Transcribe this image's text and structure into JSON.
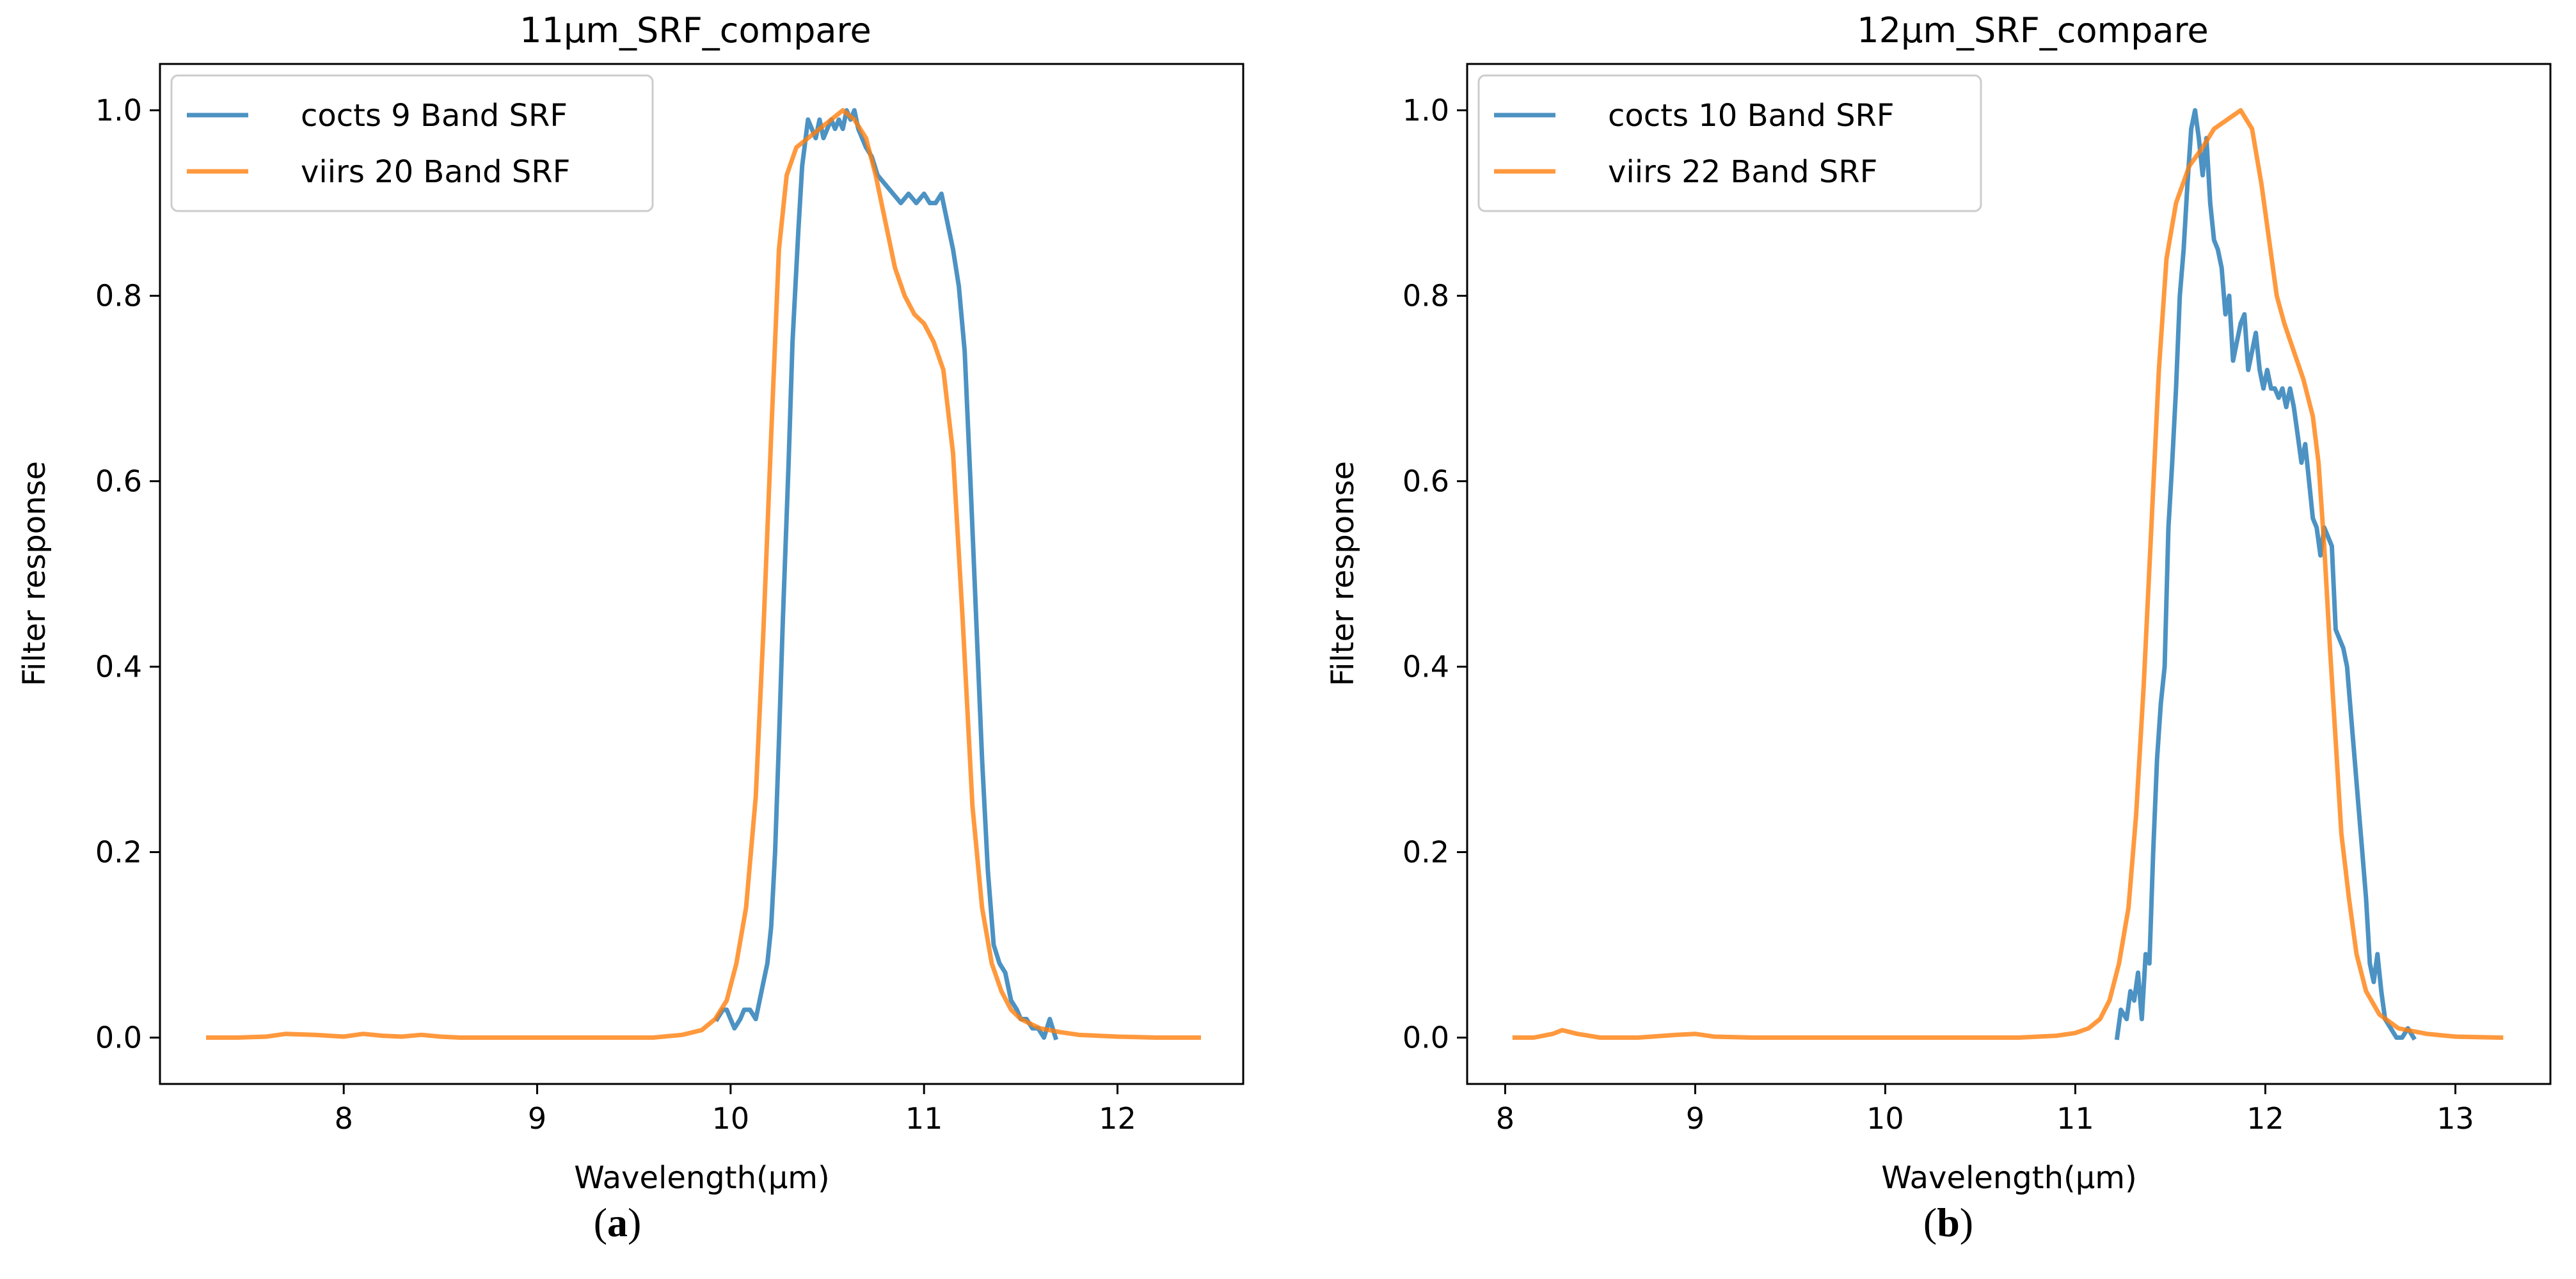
{
  "colors": {
    "cocts": "#1f77b4",
    "viirs": "#ff7f0e",
    "axis": "#000000",
    "legend_border": "#cccccc"
  },
  "captions": {
    "a": {
      "open": "(",
      "letter": "a",
      "close": ")"
    },
    "b": {
      "open": "(",
      "letter": "b",
      "close": ")"
    }
  },
  "chart_data": [
    {
      "type": "line",
      "title": "11μm_SRF_compare",
      "xlabel": "Wavelength(μm)",
      "ylabel": "Filter response",
      "xlim": [
        7.05,
        12.65
      ],
      "ylim": [
        -0.05,
        1.05
      ],
      "xticks": [
        8,
        9,
        10,
        11,
        12
      ],
      "yticks": [
        0.0,
        0.2,
        0.4,
        0.6,
        0.8,
        1.0
      ],
      "grid": false,
      "legend_position": "top-left",
      "series": [
        {
          "name": "cocts 9 Band SRF",
          "color_key": "cocts",
          "points": [
            [
              9.93,
              0.02
            ],
            [
              9.96,
              0.03
            ],
            [
              9.98,
              0.03
            ],
            [
              10.0,
              0.02
            ],
            [
              10.02,
              0.01
            ],
            [
              10.05,
              0.02
            ],
            [
              10.07,
              0.03
            ],
            [
              10.1,
              0.03
            ],
            [
              10.13,
              0.02
            ],
            [
              10.15,
              0.04
            ],
            [
              10.17,
              0.06
            ],
            [
              10.19,
              0.08
            ],
            [
              10.21,
              0.12
            ],
            [
              10.23,
              0.2
            ],
            [
              10.25,
              0.32
            ],
            [
              10.27,
              0.45
            ],
            [
              10.3,
              0.62
            ],
            [
              10.32,
              0.75
            ],
            [
              10.35,
              0.87
            ],
            [
              10.37,
              0.94
            ],
            [
              10.4,
              0.99
            ],
            [
              10.42,
              0.98
            ],
            [
              10.44,
              0.97
            ],
            [
              10.46,
              0.99
            ],
            [
              10.48,
              0.97
            ],
            [
              10.5,
              0.98
            ],
            [
              10.52,
              0.99
            ],
            [
              10.54,
              0.98
            ],
            [
              10.56,
              0.99
            ],
            [
              10.58,
              0.98
            ],
            [
              10.6,
              1.0
            ],
            [
              10.62,
              0.99
            ],
            [
              10.64,
              1.0
            ],
            [
              10.66,
              0.98
            ],
            [
              10.68,
              0.97
            ],
            [
              10.7,
              0.96
            ],
            [
              10.73,
              0.95
            ],
            [
              10.76,
              0.93
            ],
            [
              10.8,
              0.92
            ],
            [
              10.84,
              0.91
            ],
            [
              10.88,
              0.9
            ],
            [
              10.92,
              0.91
            ],
            [
              10.96,
              0.9
            ],
            [
              11.0,
              0.91
            ],
            [
              11.03,
              0.9
            ],
            [
              11.06,
              0.9
            ],
            [
              11.09,
              0.91
            ],
            [
              11.12,
              0.88
            ],
            [
              11.15,
              0.85
            ],
            [
              11.18,
              0.81
            ],
            [
              11.21,
              0.74
            ],
            [
              11.24,
              0.6
            ],
            [
              11.27,
              0.45
            ],
            [
              11.3,
              0.3
            ],
            [
              11.33,
              0.18
            ],
            [
              11.36,
              0.1
            ],
            [
              11.39,
              0.08
            ],
            [
              11.42,
              0.07
            ],
            [
              11.45,
              0.04
            ],
            [
              11.48,
              0.03
            ],
            [
              11.5,
              0.02
            ],
            [
              11.53,
              0.02
            ],
            [
              11.56,
              0.01
            ],
            [
              11.59,
              0.01
            ],
            [
              11.62,
              0.0
            ],
            [
              11.65,
              0.02
            ],
            [
              11.68,
              0.0
            ]
          ]
        },
        {
          "name": "viirs 20 Band SRF",
          "color_key": "viirs",
          "points": [
            [
              7.3,
              0.0
            ],
            [
              7.45,
              0.0
            ],
            [
              7.6,
              0.001
            ],
            [
              7.7,
              0.004
            ],
            [
              7.85,
              0.003
            ],
            [
              8.0,
              0.001
            ],
            [
              8.1,
              0.004
            ],
            [
              8.2,
              0.002
            ],
            [
              8.3,
              0.001
            ],
            [
              8.4,
              0.003
            ],
            [
              8.5,
              0.001
            ],
            [
              8.6,
              0.0
            ],
            [
              8.8,
              0.0
            ],
            [
              9.0,
              0.0
            ],
            [
              9.2,
              0.0
            ],
            [
              9.4,
              0.0
            ],
            [
              9.6,
              0.0
            ],
            [
              9.75,
              0.003
            ],
            [
              9.85,
              0.008
            ],
            [
              9.92,
              0.02
            ],
            [
              9.98,
              0.04
            ],
            [
              10.03,
              0.08
            ],
            [
              10.08,
              0.14
            ],
            [
              10.13,
              0.26
            ],
            [
              10.17,
              0.44
            ],
            [
              10.21,
              0.65
            ],
            [
              10.25,
              0.85
            ],
            [
              10.29,
              0.93
            ],
            [
              10.34,
              0.96
            ],
            [
              10.4,
              0.97
            ],
            [
              10.46,
              0.98
            ],
            [
              10.52,
              0.99
            ],
            [
              10.58,
              1.0
            ],
            [
              10.64,
              0.99
            ],
            [
              10.7,
              0.97
            ],
            [
              10.75,
              0.93
            ],
            [
              10.8,
              0.88
            ],
            [
              10.85,
              0.83
            ],
            [
              10.9,
              0.8
            ],
            [
              10.95,
              0.78
            ],
            [
              11.0,
              0.77
            ],
            [
              11.05,
              0.75
            ],
            [
              11.1,
              0.72
            ],
            [
              11.15,
              0.63
            ],
            [
              11.2,
              0.45
            ],
            [
              11.25,
              0.25
            ],
            [
              11.3,
              0.14
            ],
            [
              11.35,
              0.08
            ],
            [
              11.4,
              0.05
            ],
            [
              11.45,
              0.03
            ],
            [
              11.5,
              0.02
            ],
            [
              11.55,
              0.015
            ],
            [
              11.6,
              0.01
            ],
            [
              11.7,
              0.006
            ],
            [
              11.8,
              0.003
            ],
            [
              12.0,
              0.001
            ],
            [
              12.2,
              0.0
            ],
            [
              12.42,
              0.0
            ]
          ]
        }
      ]
    },
    {
      "type": "line",
      "title": "12μm_SRF_compare",
      "xlabel": "Wavelength(μm)",
      "ylabel": "Filter response",
      "xlim": [
        7.8,
        13.5
      ],
      "ylim": [
        -0.05,
        1.05
      ],
      "xticks": [
        8,
        9,
        10,
        11,
        12,
        13
      ],
      "yticks": [
        0.0,
        0.2,
        0.4,
        0.6,
        0.8,
        1.0
      ],
      "grid": false,
      "legend_position": "top-left",
      "series": [
        {
          "name": "cocts 10 Band SRF",
          "color_key": "cocts",
          "points": [
            [
              11.22,
              0.0
            ],
            [
              11.24,
              0.03
            ],
            [
              11.27,
              0.02
            ],
            [
              11.29,
              0.05
            ],
            [
              11.31,
              0.04
            ],
            [
              11.33,
              0.07
            ],
            [
              11.35,
              0.02
            ],
            [
              11.37,
              0.09
            ],
            [
              11.39,
              0.08
            ],
            [
              11.41,
              0.2
            ],
            [
              11.43,
              0.3
            ],
            [
              11.45,
              0.36
            ],
            [
              11.47,
              0.4
            ],
            [
              11.49,
              0.55
            ],
            [
              11.51,
              0.62
            ],
            [
              11.53,
              0.7
            ],
            [
              11.55,
              0.8
            ],
            [
              11.57,
              0.85
            ],
            [
              11.59,
              0.92
            ],
            [
              11.61,
              0.98
            ],
            [
              11.63,
              1.0
            ],
            [
              11.65,
              0.97
            ],
            [
              11.67,
              0.93
            ],
            [
              11.69,
              0.97
            ],
            [
              11.71,
              0.9
            ],
            [
              11.73,
              0.86
            ],
            [
              11.75,
              0.85
            ],
            [
              11.77,
              0.83
            ],
            [
              11.79,
              0.78
            ],
            [
              11.81,
              0.8
            ],
            [
              11.83,
              0.73
            ],
            [
              11.85,
              0.75
            ],
            [
              11.87,
              0.77
            ],
            [
              11.89,
              0.78
            ],
            [
              11.91,
              0.72
            ],
            [
              11.93,
              0.74
            ],
            [
              11.95,
              0.76
            ],
            [
              11.97,
              0.72
            ],
            [
              11.99,
              0.7
            ],
            [
              12.01,
              0.72
            ],
            [
              12.03,
              0.7
            ],
            [
              12.05,
              0.7
            ],
            [
              12.07,
              0.69
            ],
            [
              12.09,
              0.7
            ],
            [
              12.11,
              0.68
            ],
            [
              12.13,
              0.7
            ],
            [
              12.15,
              0.68
            ],
            [
              12.17,
              0.65
            ],
            [
              12.19,
              0.62
            ],
            [
              12.21,
              0.64
            ],
            [
              12.23,
              0.6
            ],
            [
              12.25,
              0.56
            ],
            [
              12.27,
              0.55
            ],
            [
              12.29,
              0.52
            ],
            [
              12.31,
              0.55
            ],
            [
              12.33,
              0.54
            ],
            [
              12.35,
              0.53
            ],
            [
              12.37,
              0.44
            ],
            [
              12.39,
              0.43
            ],
            [
              12.41,
              0.42
            ],
            [
              12.43,
              0.4
            ],
            [
              12.45,
              0.35
            ],
            [
              12.47,
              0.3
            ],
            [
              12.49,
              0.25
            ],
            [
              12.51,
              0.2
            ],
            [
              12.53,
              0.15
            ],
            [
              12.55,
              0.08
            ],
            [
              12.57,
              0.06
            ],
            [
              12.59,
              0.09
            ],
            [
              12.61,
              0.05
            ],
            [
              12.63,
              0.02
            ],
            [
              12.66,
              0.01
            ],
            [
              12.69,
              0.0
            ],
            [
              12.72,
              0.0
            ],
            [
              12.75,
              0.01
            ],
            [
              12.78,
              0.0
            ]
          ]
        },
        {
          "name": "viirs 22 Band SRF",
          "color_key": "viirs",
          "points": [
            [
              8.05,
              0.0
            ],
            [
              8.15,
              0.0
            ],
            [
              8.25,
              0.004
            ],
            [
              8.3,
              0.008
            ],
            [
              8.38,
              0.004
            ],
            [
              8.5,
              0.0
            ],
            [
              8.7,
              0.0
            ],
            [
              8.9,
              0.003
            ],
            [
              9.0,
              0.004
            ],
            [
              9.1,
              0.001
            ],
            [
              9.3,
              0.0
            ],
            [
              9.6,
              0.0
            ],
            [
              10.0,
              0.0
            ],
            [
              10.4,
              0.0
            ],
            [
              10.7,
              0.0
            ],
            [
              10.9,
              0.002
            ],
            [
              11.0,
              0.005
            ],
            [
              11.07,
              0.01
            ],
            [
              11.13,
              0.02
            ],
            [
              11.18,
              0.04
            ],
            [
              11.23,
              0.08
            ],
            [
              11.28,
              0.14
            ],
            [
              11.32,
              0.24
            ],
            [
              11.36,
              0.38
            ],
            [
              11.4,
              0.55
            ],
            [
              11.44,
              0.72
            ],
            [
              11.48,
              0.84
            ],
            [
              11.53,
              0.9
            ],
            [
              11.6,
              0.94
            ],
            [
              11.67,
              0.96
            ],
            [
              11.73,
              0.98
            ],
            [
              11.8,
              0.99
            ],
            [
              11.87,
              1.0
            ],
            [
              11.93,
              0.98
            ],
            [
              11.98,
              0.92
            ],
            [
              12.02,
              0.86
            ],
            [
              12.06,
              0.8
            ],
            [
              12.1,
              0.77
            ],
            [
              12.15,
              0.74
            ],
            [
              12.2,
              0.71
            ],
            [
              12.25,
              0.67
            ],
            [
              12.28,
              0.62
            ],
            [
              12.31,
              0.53
            ],
            [
              12.34,
              0.42
            ],
            [
              12.37,
              0.32
            ],
            [
              12.4,
              0.22
            ],
            [
              12.44,
              0.15
            ],
            [
              12.48,
              0.09
            ],
            [
              12.53,
              0.05
            ],
            [
              12.6,
              0.025
            ],
            [
              12.7,
              0.01
            ],
            [
              12.85,
              0.004
            ],
            [
              13.0,
              0.001
            ],
            [
              13.24,
              0.0
            ]
          ]
        }
      ]
    }
  ]
}
